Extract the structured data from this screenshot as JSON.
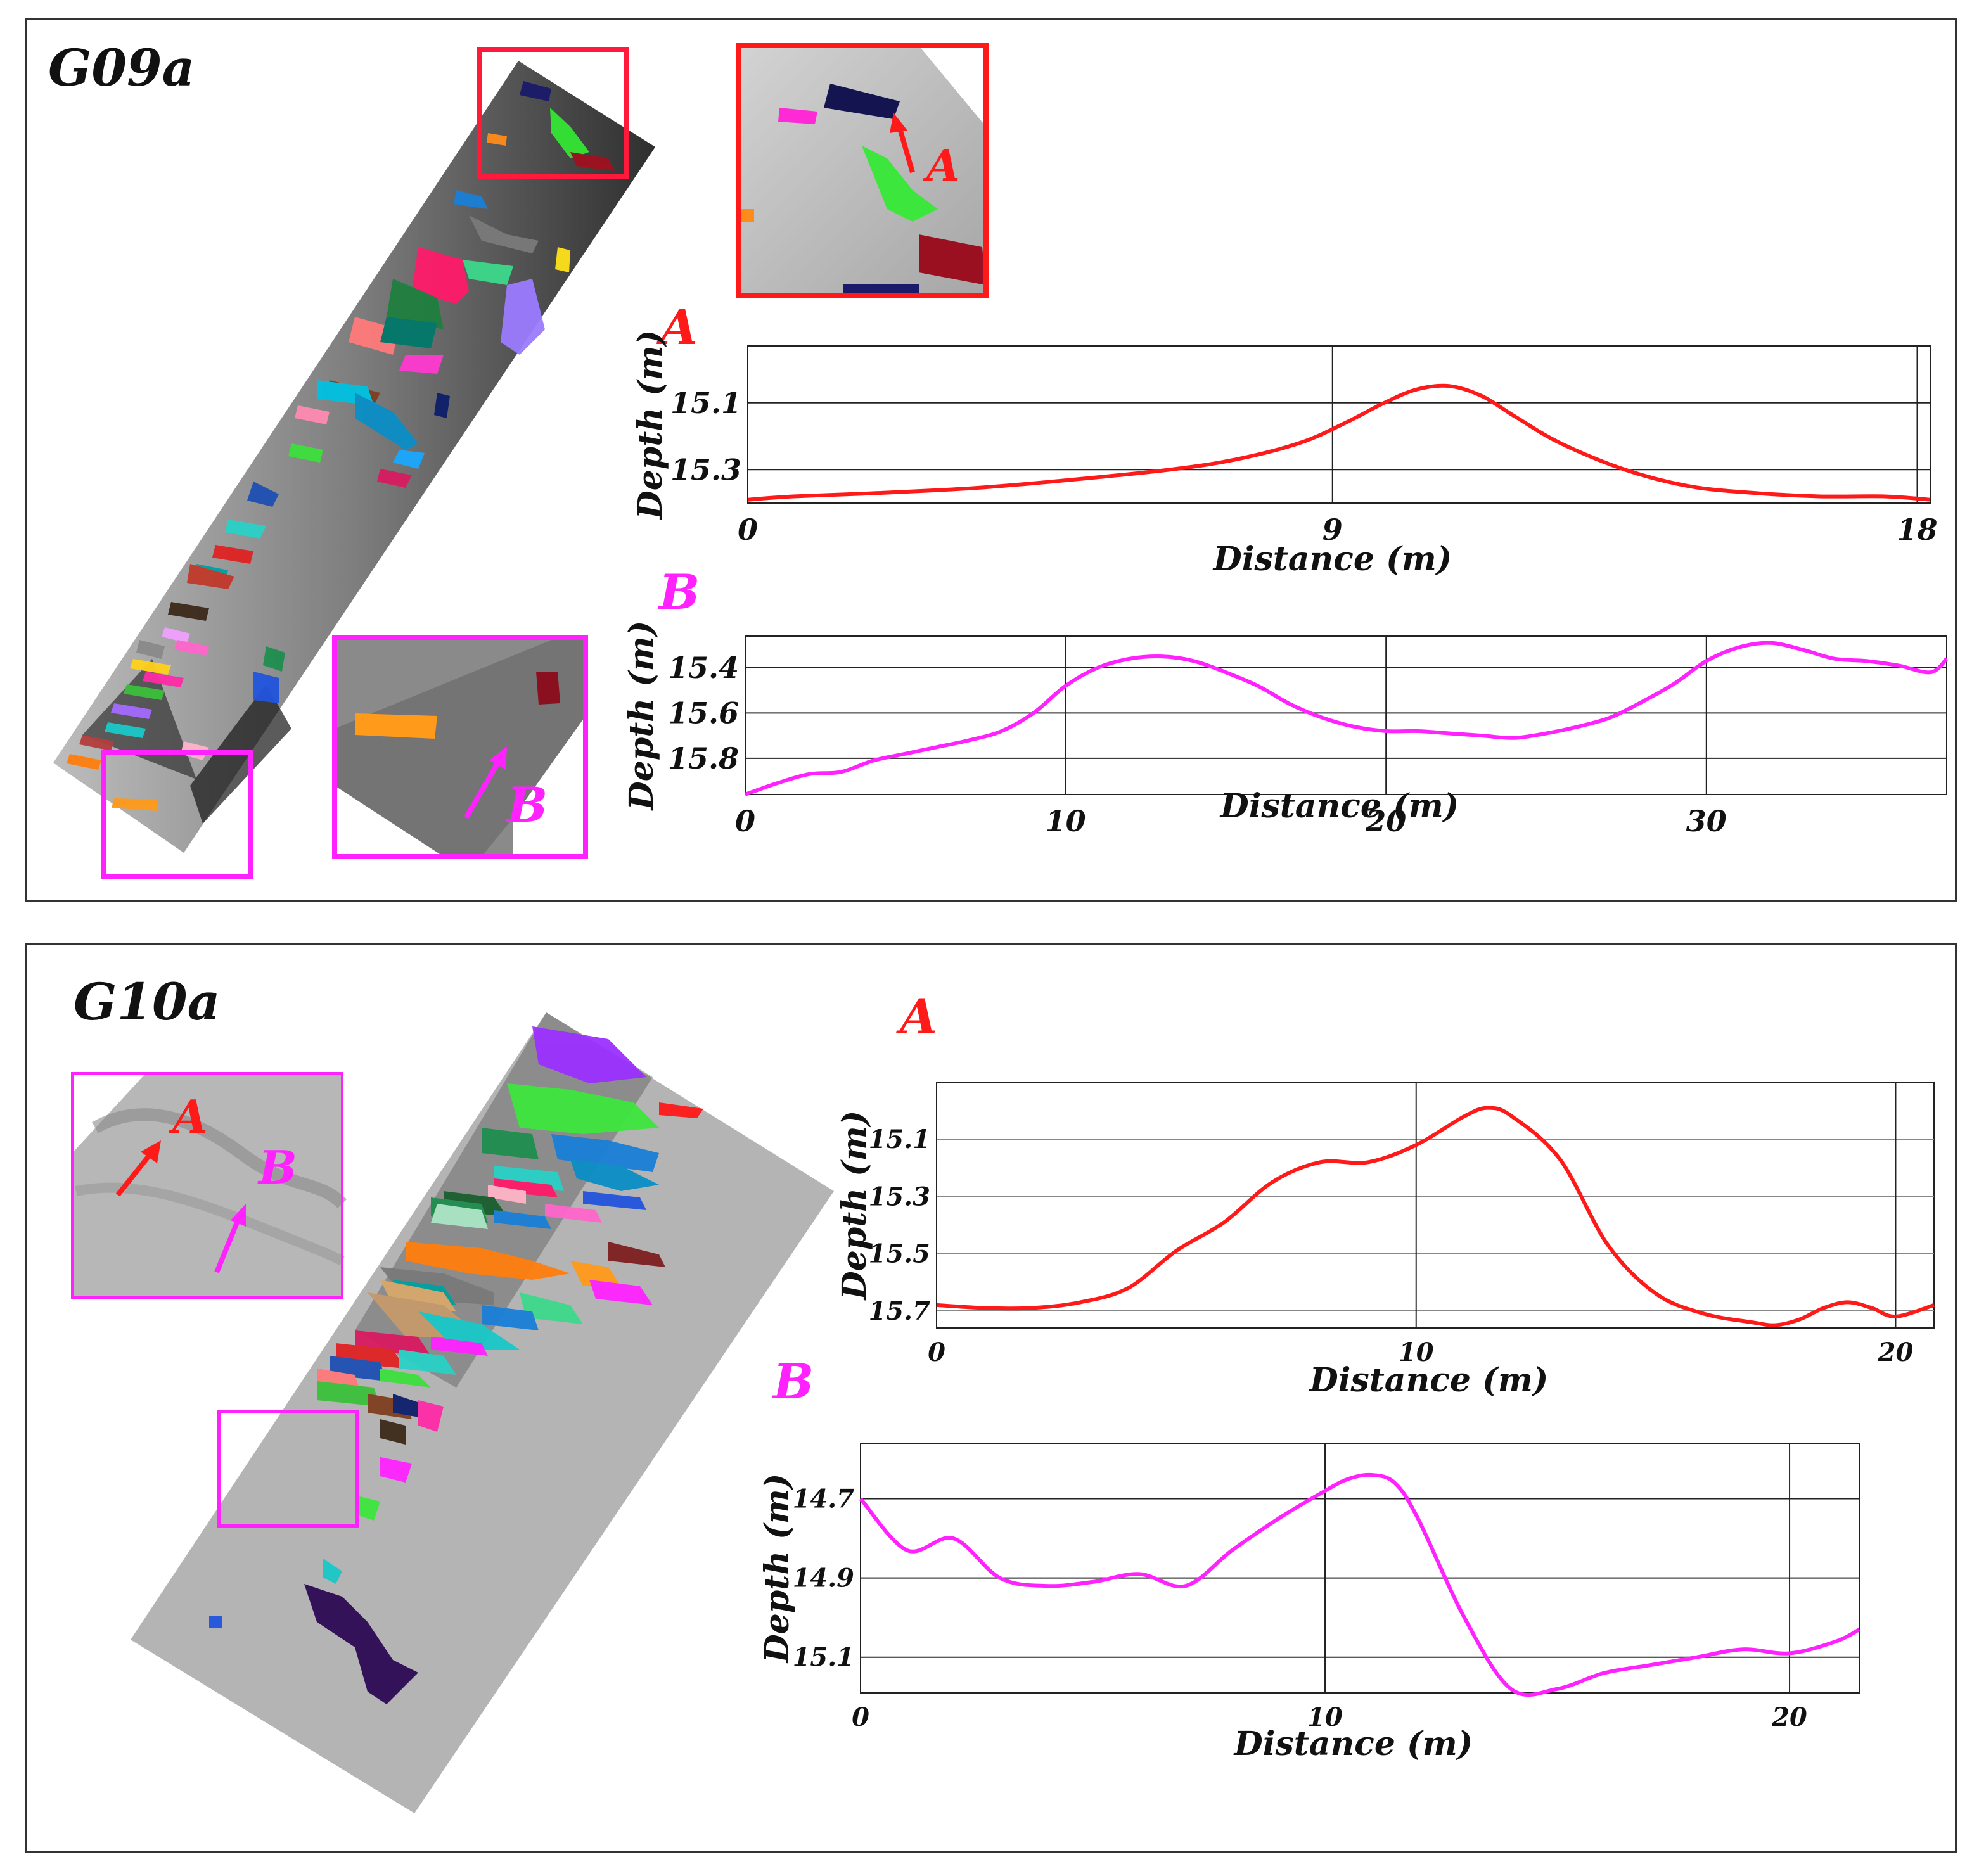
{
  "panels": [
    {
      "title": "G09a",
      "inset_labels": {
        "a": "A",
        "b": "B"
      },
      "chart_labels": {
        "a": "A",
        "b": "B"
      }
    },
    {
      "title": "G10a",
      "inset_labels": {
        "a": "A",
        "b": "B"
      },
      "chart_labels": {
        "a": "A",
        "b": "B"
      }
    }
  ],
  "colors": {
    "profile_a": "#ff1a1a",
    "profile_b": "#ff22ff",
    "grid": "#222222"
  },
  "chart_data": [
    {
      "id": "g09a-a",
      "type": "line",
      "label": "A",
      "xlabel": "Distance (m)",
      "ylabel": "Depth (m)",
      "xlim": [
        0,
        18.2
      ],
      "ylim": [
        15.4,
        14.93
      ],
      "xticks": [
        0,
        9,
        18
      ],
      "yticks": [
        15.1,
        15.3
      ],
      "series": [
        {
          "name": "A",
          "color": "#ff1a1a",
          "x": [
            0,
            0.7,
            2,
            3.5,
            5,
            6.5,
            7.5,
            8.5,
            9.2,
            9.8,
            10.3,
            10.8,
            11.3,
            11.8,
            12.5,
            13.5,
            14.5,
            15.5,
            16.5,
            17.5,
            18.2
          ],
          "y": [
            15.39,
            15.38,
            15.37,
            15.355,
            15.33,
            15.3,
            15.27,
            15.22,
            15.16,
            15.1,
            15.06,
            15.05,
            15.08,
            15.14,
            15.22,
            15.3,
            15.35,
            15.37,
            15.38,
            15.38,
            15.39
          ]
        }
      ]
    },
    {
      "id": "g09a-b",
      "type": "line",
      "label": "B",
      "xlabel": "Distance (m)",
      "ylabel": "Depth (m)",
      "xlim": [
        0,
        37.5
      ],
      "ylim": [
        15.96,
        15.26
      ],
      "xticks": [
        0,
        10,
        20,
        30
      ],
      "yticks": [
        15.4,
        15.6,
        15.8
      ],
      "series": [
        {
          "name": "B",
          "color": "#ff22ff",
          "x": [
            0,
            1,
            2,
            3,
            4,
            5,
            6,
            7,
            8,
            9,
            10,
            11,
            12,
            13,
            14,
            15,
            16,
            17,
            18,
            19,
            20,
            21,
            22,
            23,
            24,
            25,
            26,
            27,
            28,
            29,
            30,
            31,
            32,
            33,
            34,
            35,
            36,
            37,
            37.5
          ],
          "y": [
            15.96,
            15.91,
            15.87,
            15.86,
            15.81,
            15.78,
            15.75,
            15.72,
            15.68,
            15.6,
            15.48,
            15.4,
            15.36,
            15.35,
            15.37,
            15.42,
            15.48,
            15.56,
            15.62,
            15.66,
            15.68,
            15.68,
            15.69,
            15.7,
            15.71,
            15.69,
            15.66,
            15.62,
            15.55,
            15.47,
            15.37,
            15.31,
            15.29,
            15.32,
            15.36,
            15.37,
            15.39,
            15.42,
            15.36
          ]
        }
      ]
    },
    {
      "id": "g10a-a",
      "type": "line",
      "label": "A",
      "xlabel": "Distance (m)",
      "ylabel": "Depth (m)",
      "xlim": [
        0,
        20.8
      ],
      "ylim": [
        15.76,
        14.9
      ],
      "xticks": [
        0,
        10,
        20
      ],
      "yticks": [
        15.1,
        15.3,
        15.5,
        15.7
      ],
      "series": [
        {
          "name": "A",
          "color": "#ff1a1a",
          "x": [
            0,
            1,
            2,
            3,
            4,
            5,
            6,
            7,
            8,
            9,
            10,
            11,
            11.5,
            12,
            13,
            14,
            15,
            16,
            17,
            17.5,
            18,
            18.5,
            19,
            19.5,
            20,
            20.8
          ],
          "y": [
            15.68,
            15.69,
            15.69,
            15.67,
            15.62,
            15.49,
            15.39,
            15.25,
            15.18,
            15.18,
            15.12,
            15.02,
            14.99,
            15.02,
            15.17,
            15.47,
            15.64,
            15.71,
            15.74,
            15.75,
            15.73,
            15.69,
            15.67,
            15.69,
            15.72,
            15.68
          ]
        }
      ]
    },
    {
      "id": "g10a-b",
      "type": "line",
      "label": "B",
      "xlabel": "Distance (m)",
      "ylabel": "Depth (m)",
      "xlim": [
        0,
        21.5
      ],
      "ylim": [
        15.19,
        14.56
      ],
      "xticks": [
        0,
        10,
        20
      ],
      "yticks": [
        14.7,
        14.9,
        15.1
      ],
      "series": [
        {
          "name": "B",
          "color": "#ff22ff",
          "x": [
            0,
            1,
            2,
            3,
            4,
            5,
            6,
            7,
            8,
            9,
            10,
            10.5,
            11,
            11.5,
            12,
            13,
            14,
            15,
            16,
            17,
            18,
            19,
            20,
            21,
            21.5
          ],
          "y": [
            14.7,
            14.83,
            14.8,
            14.9,
            14.92,
            14.91,
            14.89,
            14.92,
            14.83,
            14.75,
            14.68,
            14.65,
            14.64,
            14.66,
            14.75,
            15.0,
            15.18,
            15.18,
            15.14,
            15.12,
            15.1,
            15.08,
            15.09,
            15.06,
            15.03
          ]
        }
      ]
    }
  ]
}
